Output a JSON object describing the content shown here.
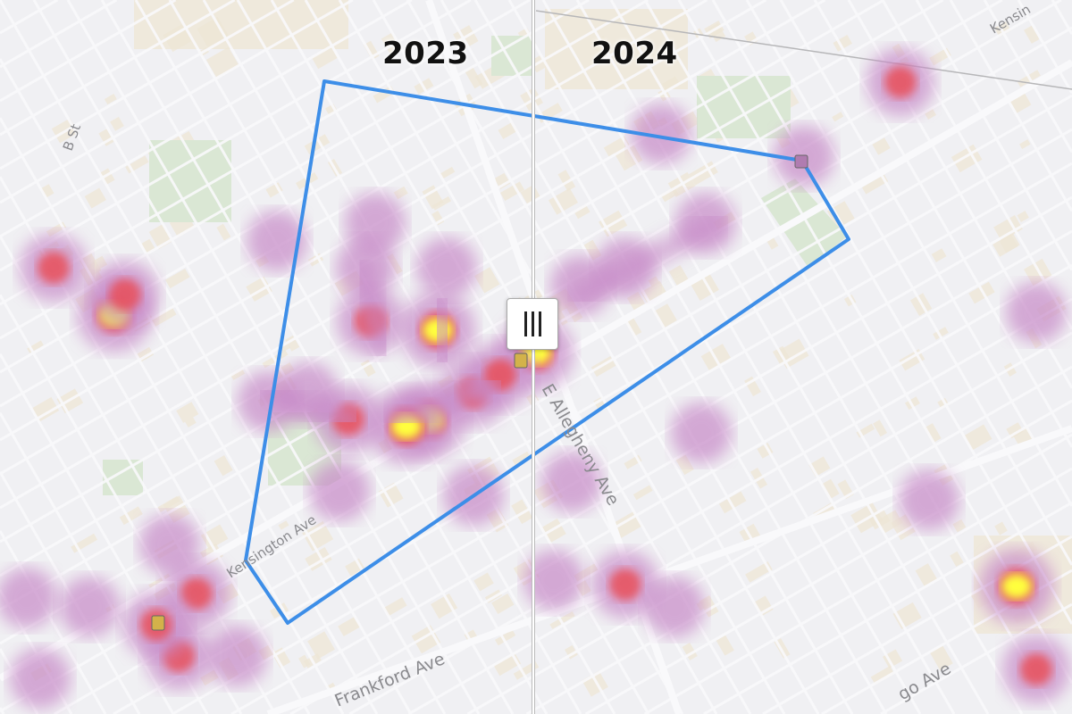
{
  "swipe": {
    "left_label": "2023",
    "right_label": "2024",
    "handle_icon": "vertical-bars-icon"
  },
  "streets": {
    "b_st": "B St",
    "kensington_ave": "Kensington Ave",
    "kensington_top": "Kensin",
    "e_allegheny_ave": "E Allegheny Ave",
    "frankford_ave": "Frankford Ave",
    "tioga_partial": "go Ave"
  },
  "colors": {
    "boundary": "#3d8ee8",
    "heat_low": "#c78ac8",
    "heat_mid": "#e8505a",
    "heat_high": "#ffff3c",
    "park": "#cfe3c4",
    "building": "#efe2c6"
  }
}
